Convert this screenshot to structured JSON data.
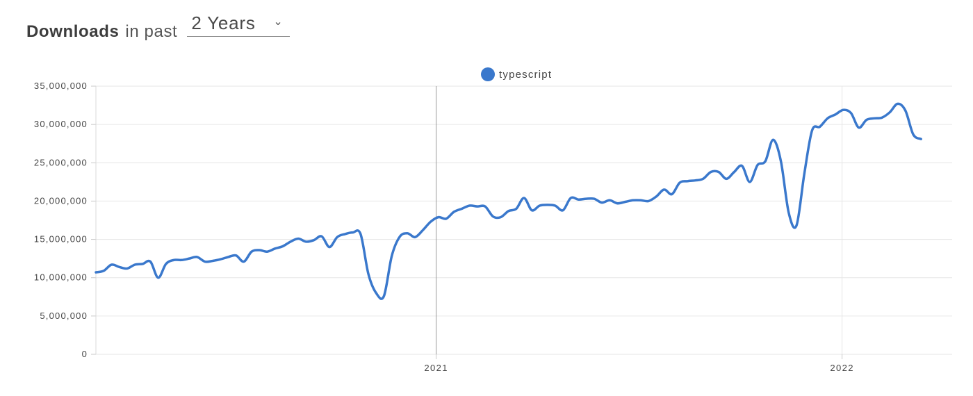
{
  "header": {
    "title_strong": "Downloads",
    "title_rest": "in past",
    "period_selected": "2 Years",
    "period_chevron_icon": "chevron-down-icon"
  },
  "colors": {
    "series": "#3a78cc",
    "grid": "#e6e6e6",
    "cursor_line": "#999999",
    "axis_text": "#444444"
  },
  "chart_data": {
    "type": "line",
    "title": "",
    "xlabel": "",
    "ylabel": "",
    "ylim": [
      0,
      35000000
    ],
    "yticks": [
      0,
      5000000,
      10000000,
      15000000,
      20000000,
      25000000,
      30000000,
      35000000
    ],
    "ytick_labels": [
      "0",
      "5,000,000",
      "10,000,000",
      "15,000,000",
      "20,000,000",
      "25,000,000",
      "30,000,000",
      "35,000,000"
    ],
    "xlim": [
      "2020-03-01",
      "2022-04-10"
    ],
    "xticks": [
      "2021-01-01",
      "2022-01-01"
    ],
    "xtick_labels": [
      "2021",
      "2022"
    ],
    "legend": {
      "position": "top-center",
      "entries": [
        "typescript"
      ]
    },
    "grid": true,
    "hover_line_x": "2021-01-01",
    "series": [
      {
        "name": "typescript",
        "color": "#3a78cc",
        "points": [
          [
            "2020-03-01",
            10700000
          ],
          [
            "2020-03-08",
            10900000
          ],
          [
            "2020-03-15",
            11700000
          ],
          [
            "2020-03-22",
            11400000
          ],
          [
            "2020-03-29",
            11200000
          ],
          [
            "2020-04-05",
            11700000
          ],
          [
            "2020-04-12",
            11800000
          ],
          [
            "2020-04-19",
            12100000
          ],
          [
            "2020-04-26",
            10000000
          ],
          [
            "2020-05-03",
            11800000
          ],
          [
            "2020-05-10",
            12300000
          ],
          [
            "2020-05-17",
            12300000
          ],
          [
            "2020-05-24",
            12500000
          ],
          [
            "2020-05-31",
            12700000
          ],
          [
            "2020-06-07",
            12100000
          ],
          [
            "2020-06-14",
            12200000
          ],
          [
            "2020-06-21",
            12400000
          ],
          [
            "2020-06-28",
            12700000
          ],
          [
            "2020-07-05",
            12900000
          ],
          [
            "2020-07-12",
            12100000
          ],
          [
            "2020-07-19",
            13400000
          ],
          [
            "2020-07-26",
            13600000
          ],
          [
            "2020-08-02",
            13400000
          ],
          [
            "2020-08-09",
            13800000
          ],
          [
            "2020-08-16",
            14100000
          ],
          [
            "2020-08-23",
            14700000
          ],
          [
            "2020-08-30",
            15100000
          ],
          [
            "2020-09-06",
            14700000
          ],
          [
            "2020-09-13",
            14900000
          ],
          [
            "2020-09-20",
            15400000
          ],
          [
            "2020-09-27",
            14000000
          ],
          [
            "2020-10-04",
            15300000
          ],
          [
            "2020-10-11",
            15700000
          ],
          [
            "2020-10-18",
            15900000
          ],
          [
            "2020-10-25",
            15700000
          ],
          [
            "2020-11-01",
            10500000
          ],
          [
            "2020-11-08",
            8000000
          ],
          [
            "2020-11-15",
            7600000
          ],
          [
            "2020-11-22",
            12800000
          ],
          [
            "2020-11-29",
            15300000
          ],
          [
            "2020-12-06",
            15800000
          ],
          [
            "2020-12-13",
            15300000
          ],
          [
            "2020-12-20",
            16200000
          ],
          [
            "2020-12-27",
            17300000
          ],
          [
            "2021-01-03",
            17900000
          ],
          [
            "2021-01-10",
            17700000
          ],
          [
            "2021-01-17",
            18600000
          ],
          [
            "2021-01-24",
            19000000
          ],
          [
            "2021-01-31",
            19400000
          ],
          [
            "2021-02-07",
            19300000
          ],
          [
            "2021-02-14",
            19300000
          ],
          [
            "2021-02-21",
            18000000
          ],
          [
            "2021-02-28",
            17900000
          ],
          [
            "2021-03-07",
            18700000
          ],
          [
            "2021-03-14",
            19000000
          ],
          [
            "2021-03-21",
            20400000
          ],
          [
            "2021-03-28",
            18800000
          ],
          [
            "2021-04-04",
            19400000
          ],
          [
            "2021-04-11",
            19500000
          ],
          [
            "2021-04-18",
            19400000
          ],
          [
            "2021-04-25",
            18800000
          ],
          [
            "2021-05-02",
            20400000
          ],
          [
            "2021-05-09",
            20200000
          ],
          [
            "2021-05-16",
            20300000
          ],
          [
            "2021-05-23",
            20300000
          ],
          [
            "2021-05-30",
            19800000
          ],
          [
            "2021-06-06",
            20100000
          ],
          [
            "2021-06-13",
            19700000
          ],
          [
            "2021-06-20",
            19900000
          ],
          [
            "2021-06-27",
            20100000
          ],
          [
            "2021-07-04",
            20100000
          ],
          [
            "2021-07-11",
            20000000
          ],
          [
            "2021-07-18",
            20600000
          ],
          [
            "2021-07-25",
            21500000
          ],
          [
            "2021-08-01",
            20900000
          ],
          [
            "2021-08-08",
            22400000
          ],
          [
            "2021-08-15",
            22600000
          ],
          [
            "2021-08-22",
            22700000
          ],
          [
            "2021-08-29",
            22900000
          ],
          [
            "2021-09-05",
            23800000
          ],
          [
            "2021-09-12",
            23800000
          ],
          [
            "2021-09-19",
            22900000
          ],
          [
            "2021-09-26",
            23800000
          ],
          [
            "2021-10-03",
            24600000
          ],
          [
            "2021-10-10",
            22500000
          ],
          [
            "2021-10-17",
            24700000
          ],
          [
            "2021-10-24",
            25200000
          ],
          [
            "2021-10-31",
            28000000
          ],
          [
            "2021-11-07",
            25200000
          ],
          [
            "2021-11-14",
            18500000
          ],
          [
            "2021-11-21",
            16800000
          ],
          [
            "2021-11-28",
            23500000
          ],
          [
            "2021-12-05",
            29200000
          ],
          [
            "2021-12-12",
            29700000
          ],
          [
            "2021-12-19",
            30800000
          ],
          [
            "2021-12-26",
            31300000
          ],
          [
            "2022-01-02",
            31900000
          ],
          [
            "2022-01-09",
            31500000
          ],
          [
            "2022-01-16",
            29600000
          ],
          [
            "2022-01-23",
            30600000
          ],
          [
            "2022-01-30",
            30800000
          ],
          [
            "2022-02-06",
            30900000
          ],
          [
            "2022-02-13",
            31600000
          ],
          [
            "2022-02-20",
            32700000
          ],
          [
            "2022-02-27",
            31800000
          ],
          [
            "2022-03-06",
            28700000
          ],
          [
            "2022-03-13",
            28100000
          ]
        ]
      }
    ]
  }
}
